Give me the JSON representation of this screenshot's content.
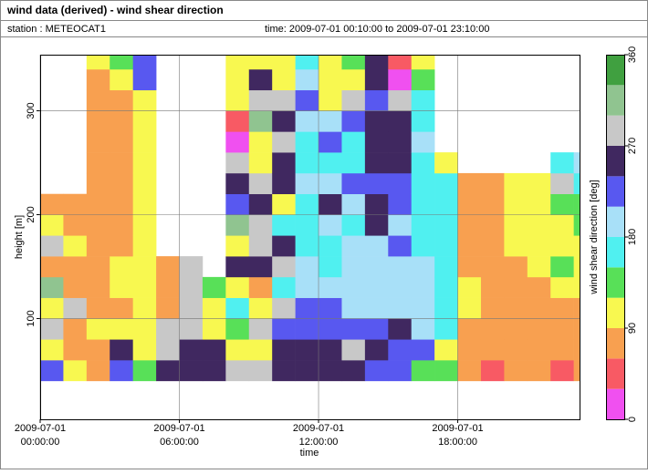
{
  "chart_data": {
    "type": "heatmap",
    "title": "wind data (derived) - wind shear direction",
    "station": "station : METEOCAT1",
    "time_range": "time: 2009-07-01 00:10:00 to 2009-07-01 23:10:00",
    "x_label": "time",
    "y_label": "height [m]",
    "colorbar_label": "wind shear direction [deg]",
    "xlim": [
      0,
      23.25
    ],
    "xticks": [
      {
        "value": 0,
        "label": "2009-07-01 00:00:00"
      },
      {
        "value": 6,
        "label": "2009-07-01 06:00:00"
      },
      {
        "value": 12,
        "label": "2009-07-01 12:00:00"
      },
      {
        "value": 18,
        "label": "2009-07-01 18:00:00"
      }
    ],
    "ylim": [
      3,
      354
    ],
    "yticks": [
      100,
      200,
      300
    ],
    "grid": true,
    "x_edges": [
      0,
      1,
      2,
      3,
      4,
      5,
      6,
      7,
      8,
      9,
      10,
      11,
      12,
      13,
      14,
      15,
      16,
      17,
      18,
      19,
      20,
      21,
      22,
      23,
      23.25
    ],
    "y_edges": [
      40,
      60,
      80,
      100,
      120,
      140,
      160,
      180,
      200,
      220,
      240,
      260,
      280,
      300,
      320,
      340,
      354
    ],
    "levels": [
      0,
      30,
      60,
      90,
      120,
      150,
      180,
      210,
      240,
      270,
      300,
      330,
      360
    ],
    "colors": [
      "#f050f0",
      "#f85a64",
      "#f8a050",
      "#f8f850",
      "#58e058",
      "#50f0f0",
      "#a8e0f8",
      "#5858f0",
      "#402860",
      "#c8c8c8",
      "#90c490",
      "#40a040"
    ],
    "cticks": [
      0,
      90,
      180,
      270,
      360
    ],
    "values": [
      [
        225,
        105,
        285,
        105,
        315,
        75,
        285,
        105,
        75,
        null,
        null,
        null,
        null,
        null,
        null,
        null
      ],
      [
        105,
        75,
        75,
        285,
        75,
        75,
        105,
        75,
        75,
        null,
        null,
        null,
        null,
        null,
        null,
        null
      ],
      [
        75,
        75,
        105,
        75,
        75,
        75,
        75,
        75,
        75,
        75,
        75,
        75,
        75,
        75,
        75,
        105
      ],
      [
        225,
        255,
        105,
        75,
        105,
        105,
        75,
        75,
        75,
        75,
        75,
        75,
        75,
        75,
        105,
        135
      ],
      [
        135,
        105,
        105,
        105,
        105,
        105,
        105,
        105,
        105,
        105,
        105,
        105,
        105,
        105,
        225,
        225
      ],
      [
        255,
        285,
        285,
        75,
        75,
        75,
        null,
        null,
        null,
        null,
        null,
        null,
        null,
        null,
        null,
        null
      ],
      [
        255,
        255,
        285,
        285,
        285,
        285,
        null,
        null,
        null,
        null,
        null,
        null,
        null,
        null,
        null,
        null
      ],
      [
        255,
        255,
        105,
        105,
        135,
        null,
        null,
        null,
        null,
        null,
        null,
        null,
        null,
        null,
        null,
        null
      ],
      [
        285,
        105,
        135,
        165,
        105,
        255,
        105,
        315,
        225,
        255,
        285,
        15,
        45,
        105,
        105,
        105
      ],
      [
        285,
        105,
        285,
        105,
        75,
        255,
        285,
        285,
        255,
        285,
        105,
        105,
        315,
        285,
        255,
        105
      ],
      [
        255,
        255,
        225,
        285,
        165,
        285,
        255,
        165,
        105,
        255,
        255,
        285,
        255,
        285,
        105,
        105
      ],
      [
        255,
        255,
        225,
        225,
        195,
        195,
        165,
        165,
        165,
        195,
        165,
        165,
        195,
        225,
        195,
        165
      ],
      [
        255,
        255,
        225,
        225,
        195,
        165,
        165,
        195,
        255,
        195,
        165,
        225,
        195,
        105,
        105,
        105
      ],
      [
        255,
        285,
        225,
        195,
        195,
        195,
        195,
        165,
        195,
        225,
        165,
        165,
        225,
        285,
        105,
        135
      ],
      [
        225,
        255,
        225,
        195,
        195,
        195,
        195,
        255,
        255,
        225,
        255,
        255,
        255,
        225,
        255,
        255
      ],
      [
        225,
        225,
        255,
        195,
        195,
        195,
        225,
        195,
        225,
        225,
        255,
        255,
        255,
        285,
        15,
        45
      ],
      [
        135,
        225,
        195,
        195,
        195,
        195,
        165,
        165,
        165,
        165,
        165,
        195,
        165,
        165,
        135,
        105
      ],
      [
        135,
        105,
        165,
        165,
        165,
        165,
        165,
        165,
        165,
        165,
        105,
        null,
        null,
        null,
        null,
        null
      ],
      [
        75,
        75,
        75,
        105,
        105,
        75,
        75,
        75,
        75,
        75,
        null,
        null,
        null,
        null,
        null,
        null
      ],
      [
        45,
        75,
        75,
        75,
        75,
        75,
        75,
        75,
        75,
        75,
        null,
        null,
        null,
        null,
        null,
        null
      ],
      [
        75,
        75,
        75,
        75,
        75,
        75,
        105,
        105,
        105,
        105,
        null,
        null,
        null,
        null,
        null,
        null
      ],
      [
        75,
        75,
        75,
        75,
        75,
        105,
        105,
        105,
        105,
        105,
        null,
        null,
        null,
        null,
        null,
        null
      ],
      [
        45,
        75,
        75,
        75,
        105,
        135,
        105,
        105,
        135,
        285,
        165,
        null,
        null,
        null,
        null,
        null
      ],
      [
        75,
        75,
        75,
        75,
        105,
        105,
        105,
        135,
        135,
        165,
        195,
        null,
        null,
        null,
        null,
        null
      ]
    ]
  }
}
